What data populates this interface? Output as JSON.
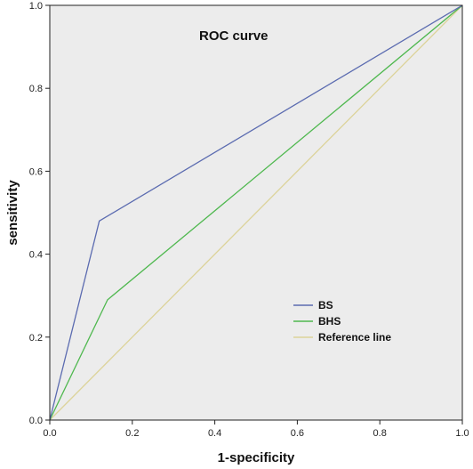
{
  "chart_data": {
    "type": "line",
    "title": "ROC curve",
    "xlabel": "1-specificity",
    "ylabel": "sensitivity",
    "xlim": [
      0,
      1
    ],
    "ylim": [
      0,
      1
    ],
    "x_ticks": [
      0.0,
      0.2,
      0.4,
      0.6,
      0.8,
      1.0
    ],
    "y_ticks": [
      0.0,
      0.2,
      0.4,
      0.6,
      0.8,
      1.0
    ],
    "x_tick_labels": [
      "0.0",
      "0.2",
      "0.4",
      "0.6",
      "0.8",
      "1.0"
    ],
    "y_tick_labels": [
      "0.0",
      "0.2",
      "0.4",
      "0.6",
      "0.8",
      "1.0"
    ],
    "grid": false,
    "legend_position": "lower-right",
    "background_color": "#ececec",
    "series": [
      {
        "name": "BS",
        "color": "#5b6bb0",
        "x": [
          0.0,
          0.12,
          1.0
        ],
        "y": [
          0.0,
          0.48,
          1.0
        ]
      },
      {
        "name": "BHS",
        "color": "#4fb84f",
        "x": [
          0.0,
          0.14,
          1.0
        ],
        "y": [
          0.0,
          0.29,
          1.0
        ]
      },
      {
        "name": "Reference line",
        "color": "#dcd39a",
        "x": [
          0.0,
          1.0
        ],
        "y": [
          0.0,
          1.0
        ]
      }
    ]
  }
}
